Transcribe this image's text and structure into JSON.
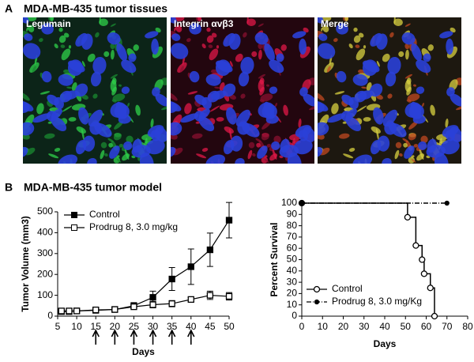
{
  "panel_a": {
    "label": "A",
    "title": "MDA-MB-435 tumor tissues",
    "images": [
      "Legumain",
      "Integrin αvβ3",
      "Merge"
    ]
  },
  "panel_b": {
    "label": "B",
    "title": "MDA-MB-435 tumor model"
  },
  "chart_data": [
    {
      "type": "line",
      "x_label": "Days",
      "y_label": "Tumor Volume (mm3)",
      "x": [
        6,
        8,
        10,
        15,
        20,
        25,
        30,
        35,
        40,
        45,
        50
      ],
      "series": [
        {
          "name": "Control",
          "color": "#000000",
          "marker": "filled",
          "values": [
            22,
            22,
            25,
            28,
            32,
            50,
            90,
            178,
            237,
            318,
            460
          ],
          "errors": [
            5,
            5,
            5,
            8,
            8,
            15,
            30,
            55,
            85,
            80,
            85
          ]
        },
        {
          "name": "Prodrug 8, 3.0 mg/kg",
          "color": "#000000",
          "marker": "open",
          "values": [
            25,
            25,
            25,
            30,
            32,
            45,
            55,
            60,
            80,
            100,
            95
          ],
          "errors": [
            5,
            5,
            5,
            5,
            8,
            10,
            15,
            15,
            10,
            20,
            18
          ]
        }
      ],
      "xlim": [
        5,
        50
      ],
      "xticks": [
        5,
        10,
        15,
        20,
        25,
        30,
        35,
        40,
        45,
        50
      ],
      "ylim": [
        0,
        500
      ],
      "yticks": [
        0,
        100,
        200,
        300,
        400,
        500
      ],
      "arrows": [
        15,
        20,
        25,
        30,
        35,
        40
      ],
      "legend": "upper left"
    },
    {
      "type": "step",
      "x_label": "Days",
      "y_label": "Percent Survival",
      "series": [
        {
          "name": "Control",
          "color": "#000000",
          "marker": "open",
          "dashed": false,
          "x": [
            0,
            51,
            55,
            58,
            59,
            62,
            64
          ],
          "values": [
            100,
            87.5,
            62.5,
            50,
            37.5,
            25,
            0
          ]
        },
        {
          "name": "Prodrug 8, 3.0 mg/Kg",
          "color": "#000000",
          "marker": "small",
          "dashed": true,
          "x": [
            0,
            70
          ],
          "values": [
            100,
            100
          ]
        }
      ],
      "xlim": [
        0,
        80
      ],
      "xticks": [
        0,
        10,
        20,
        30,
        40,
        50,
        60,
        70,
        80
      ],
      "ylim": [
        0,
        100
      ],
      "yticks": [
        0,
        10,
        20,
        30,
        40,
        50,
        60,
        70,
        80,
        90,
        100
      ],
      "legend": "lower left"
    }
  ]
}
